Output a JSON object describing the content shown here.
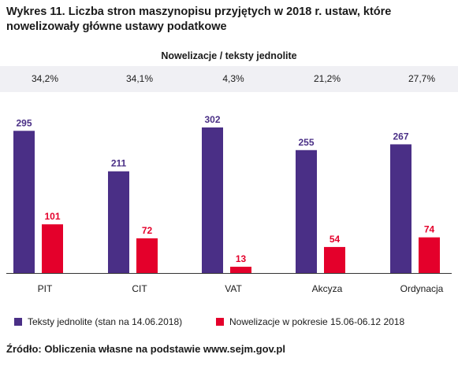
{
  "title": "Wykres 11. Liczba stron maszynopisu przyjętych w 2018 r. ustaw, które nowelizowały główne ustawy podatkowe",
  "ratio_header": "Nowelizacje / teksty jednolite",
  "ratios": [
    "34,2%",
    "34,1%",
    "4,3%",
    "21,2%",
    "27,7%"
  ],
  "colors": {
    "series1": "#4a2f86",
    "series2": "#e4002b",
    "band": "#f0f0f4"
  },
  "chart_data": {
    "type": "bar",
    "categories": [
      "PIT",
      "CIT",
      "VAT",
      "Akcyza",
      "Ordynacja"
    ],
    "series": [
      {
        "name": "Teksty jednolite (stan na 14.06.2018)",
        "values": [
          295,
          211,
          302,
          255,
          267
        ]
      },
      {
        "name": "Nowelizacje w pokresie 15.06-06.12 2018",
        "values": [
          101,
          72,
          13,
          54,
          74
        ]
      }
    ],
    "ylim": [
      0,
      320
    ],
    "grid": false,
    "legend": "bottom"
  },
  "source": "Źródło: Obliczenia własne na podstawie www.sejm.gov.pl"
}
